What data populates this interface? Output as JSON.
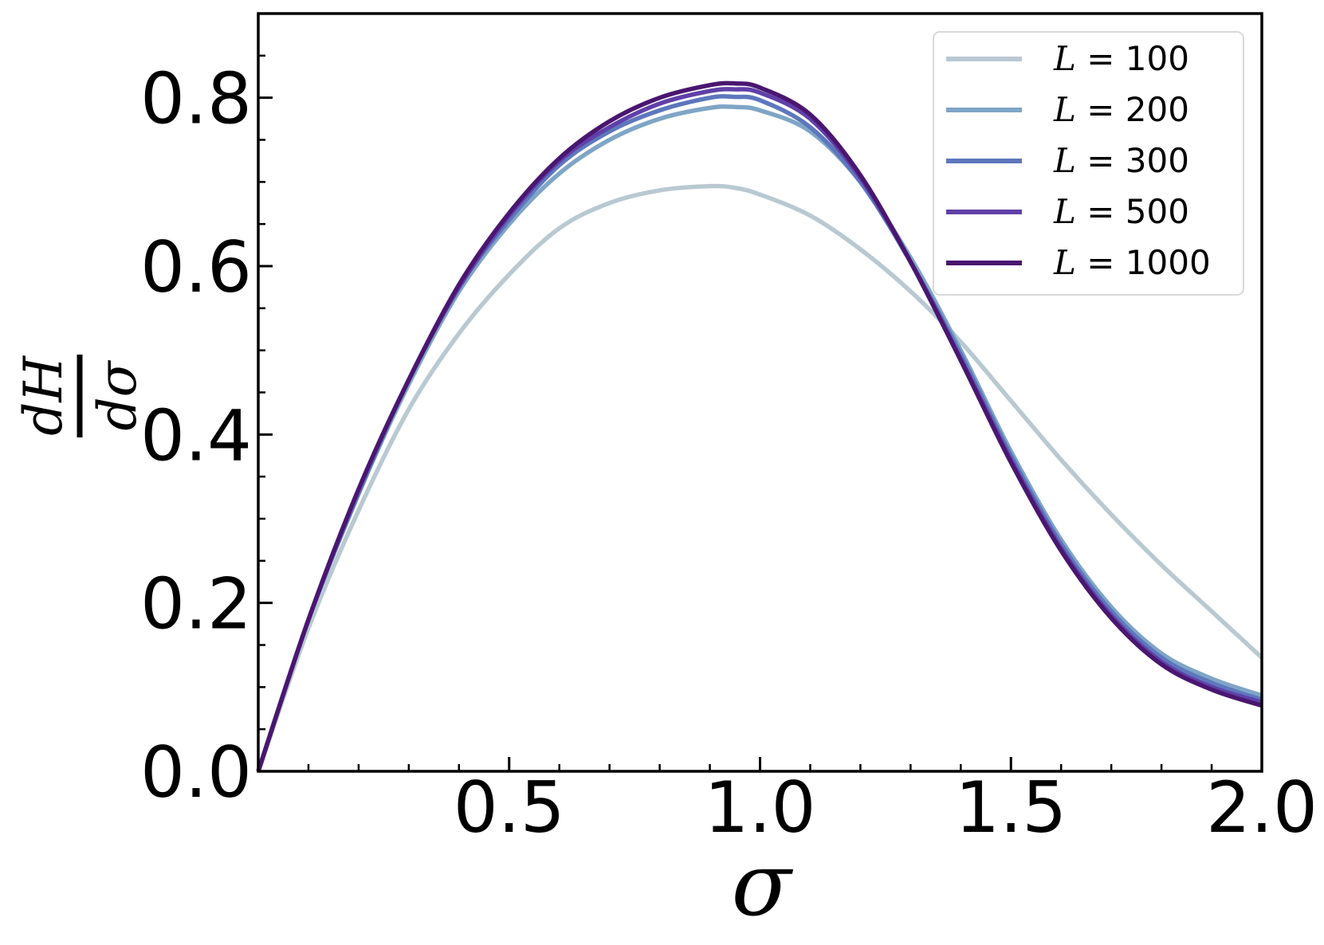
{
  "chart_data": {
    "type": "line",
    "xlabel": "σ",
    "ylabel": {
      "numerator": "dH",
      "denominator": "dσ"
    },
    "xlim": [
      0.0,
      2.0
    ],
    "ylim": [
      0.0,
      0.9
    ],
    "xticks": [
      0.5,
      1.0,
      1.5,
      2.0
    ],
    "xtick_labels": [
      "0.5",
      "1.0",
      "1.5",
      "2.0"
    ],
    "yticks": [
      0.0,
      0.2,
      0.4,
      0.6,
      0.8
    ],
    "ytick_labels": [
      "0.0",
      "0.2",
      "0.4",
      "0.6",
      "0.8"
    ],
    "x_minor_step": 0.1,
    "y_minor_step": 0.05,
    "grid": false,
    "legend_position": "top-right",
    "x": [
      0.0,
      0.1,
      0.2,
      0.3,
      0.4,
      0.5,
      0.6,
      0.7,
      0.8,
      0.9,
      0.95,
      1.0,
      1.1,
      1.2,
      1.3,
      1.4,
      1.5,
      1.6,
      1.7,
      1.8,
      1.9,
      2.0
    ],
    "series": [
      {
        "name": "L = 100",
        "label_prefix": "L",
        "label_value": "100",
        "color": "#b9c9d1",
        "values": [
          0.0,
          0.17,
          0.31,
          0.43,
          0.52,
          0.59,
          0.645,
          0.675,
          0.69,
          0.695,
          0.693,
          0.685,
          0.66,
          0.62,
          0.57,
          0.51,
          0.44,
          0.37,
          0.305,
          0.245,
          0.19,
          0.135
        ]
      },
      {
        "name": "L = 200",
        "label_prefix": "L",
        "label_value": "200",
        "color": "#7fa5c6",
        "values": [
          0.0,
          0.18,
          0.33,
          0.46,
          0.57,
          0.65,
          0.71,
          0.75,
          0.775,
          0.788,
          0.789,
          0.785,
          0.76,
          0.7,
          0.61,
          0.5,
          0.38,
          0.275,
          0.195,
          0.14,
          0.11,
          0.09
        ]
      },
      {
        "name": "L = 300",
        "label_prefix": "L",
        "label_value": "300",
        "color": "#5d77bd",
        "values": [
          0.0,
          0.18,
          0.33,
          0.465,
          0.575,
          0.655,
          0.72,
          0.76,
          0.785,
          0.8,
          0.801,
          0.797,
          0.765,
          0.7,
          0.605,
          0.495,
          0.375,
          0.27,
          0.19,
          0.135,
          0.105,
          0.085
        ]
      },
      {
        "name": "L = 500",
        "label_prefix": "L",
        "label_value": "500",
        "color": "#6040a8",
        "values": [
          0.0,
          0.18,
          0.335,
          0.465,
          0.575,
          0.66,
          0.725,
          0.765,
          0.793,
          0.808,
          0.81,
          0.806,
          0.775,
          0.705,
          0.605,
          0.49,
          0.37,
          0.265,
          0.185,
          0.13,
          0.1,
          0.082
        ]
      },
      {
        "name": "L = 1000",
        "label_prefix": "L",
        "label_value": "1000",
        "color": "#4a1670",
        "values": [
          0.0,
          0.18,
          0.335,
          0.465,
          0.578,
          0.663,
          0.728,
          0.772,
          0.8,
          0.815,
          0.817,
          0.812,
          0.78,
          0.708,
          0.605,
          0.488,
          0.367,
          0.262,
          0.182,
          0.127,
          0.097,
          0.078
        ]
      }
    ]
  }
}
